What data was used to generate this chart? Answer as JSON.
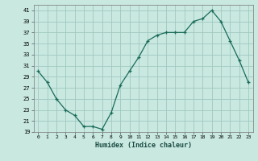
{
  "x": [
    0,
    1,
    2,
    3,
    4,
    5,
    6,
    7,
    8,
    9,
    10,
    11,
    12,
    13,
    14,
    15,
    16,
    17,
    18,
    19,
    20,
    21,
    22,
    23
  ],
  "y": [
    30,
    28,
    25,
    23,
    22,
    20,
    20,
    19.5,
    22.5,
    27.5,
    30,
    32.5,
    35.5,
    36.5,
    37,
    37,
    37,
    39,
    39.5,
    41,
    39,
    35.5,
    32,
    28
  ],
  "line_color": "#1a6b5a",
  "marker": "+",
  "bg_color": "#c8e8e0",
  "grid_color": "#a0c8c0",
  "xlabel": "Humidex (Indice chaleur)",
  "ylim": [
    19,
    42
  ],
  "yticks": [
    19,
    21,
    23,
    25,
    27,
    29,
    31,
    33,
    35,
    37,
    39,
    41
  ],
  "xlim": [
    -0.5,
    23.5
  ],
  "xticks": [
    0,
    1,
    2,
    3,
    4,
    5,
    6,
    7,
    8,
    9,
    10,
    11,
    12,
    13,
    14,
    15,
    16,
    17,
    18,
    19,
    20,
    21,
    22,
    23
  ]
}
